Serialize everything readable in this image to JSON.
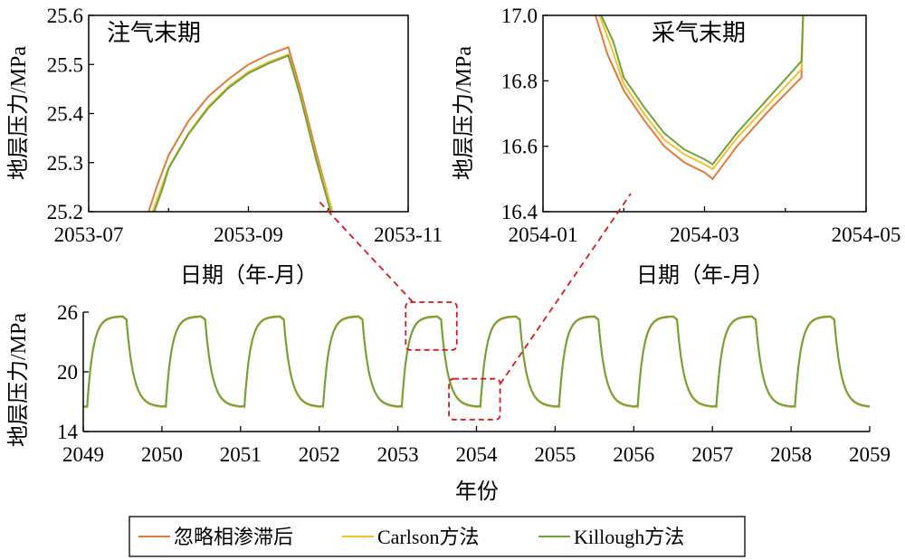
{
  "colors": {
    "ignore": "#E07B39",
    "carlson": "#F2C12E",
    "killough": "#6FA33A",
    "highlight": "#D7191C"
  },
  "legend": {
    "items": [
      {
        "key": "ignore",
        "label": "忽略相渗滞后"
      },
      {
        "key": "carlson",
        "label": "Carlson方法"
      },
      {
        "key": "killough",
        "label": "Killough方法"
      }
    ]
  },
  "chart_data": [
    {
      "id": "injection-end",
      "type": "line",
      "title": "注气末期",
      "xlabel": "日期（年-月）",
      "ylabel": "地层压力/MPa",
      "xlim": [
        "2053-07",
        "2053-11"
      ],
      "xticks": [
        "2053-07",
        "2053-09",
        "2053-11"
      ],
      "ylim": [
        25.2,
        25.6
      ],
      "yticks": [
        "25.2",
        "25.3",
        "25.4",
        "25.5",
        "25.6"
      ],
      "series": [
        {
          "key": "ignore",
          "name": "忽略相渗滞后",
          "points": [
            [
              0.75,
              25.2
            ],
            [
              0.85,
              25.25
            ],
            [
              1.0,
              25.315
            ],
            [
              1.25,
              25.385
            ],
            [
              1.5,
              25.435
            ],
            [
              1.75,
              25.47
            ],
            [
              2.0,
              25.5
            ],
            [
              2.25,
              25.52
            ],
            [
              2.5,
              25.535
            ],
            [
              2.65,
              25.45
            ],
            [
              2.85,
              25.32
            ],
            [
              3.05,
              25.2
            ]
          ]
        },
        {
          "key": "carlson",
          "name": "Carlson方法",
          "points": [
            [
              0.8,
              25.2
            ],
            [
              0.9,
              25.245
            ],
            [
              1.0,
              25.29
            ],
            [
              1.25,
              25.36
            ],
            [
              1.5,
              25.415
            ],
            [
              1.75,
              25.455
            ],
            [
              2.0,
              25.485
            ],
            [
              2.25,
              25.505
            ],
            [
              2.5,
              25.52
            ],
            [
              2.65,
              25.44
            ],
            [
              2.85,
              25.31
            ],
            [
              3.05,
              25.2
            ]
          ]
        },
        {
          "key": "killough",
          "name": "Killough方法",
          "points": [
            [
              0.82,
              25.2
            ],
            [
              0.92,
              25.245
            ],
            [
              1.0,
              25.288
            ],
            [
              1.25,
              25.358
            ],
            [
              1.5,
              25.412
            ],
            [
              1.75,
              25.452
            ],
            [
              2.0,
              25.482
            ],
            [
              2.25,
              25.502
            ],
            [
              2.5,
              25.518
            ],
            [
              2.65,
              25.435
            ],
            [
              2.85,
              25.305
            ],
            [
              3.03,
              25.2
            ]
          ]
        }
      ]
    },
    {
      "id": "production-end",
      "type": "line",
      "title": "采气末期",
      "xlabel": "日期（年-月）",
      "ylabel": "地层压力/MPa",
      "xlim": [
        "2054-01",
        "2054-05"
      ],
      "xticks": [
        "2054-01",
        "2054-03",
        "2054-05"
      ],
      "ylim": [
        16.4,
        17.0
      ],
      "yticks": [
        "16.4",
        "16.6",
        "16.8",
        "17.0"
      ],
      "series": [
        {
          "key": "ignore",
          "name": "忽略相渗滞后",
          "points": [
            [
              0.65,
              17.0
            ],
            [
              0.8,
              16.88
            ],
            [
              1.0,
              16.77
            ],
            [
              1.25,
              16.68
            ],
            [
              1.5,
              16.6
            ],
            [
              1.75,
              16.55
            ],
            [
              2.0,
              16.52
            ],
            [
              2.1,
              16.5
            ],
            [
              2.4,
              16.6
            ],
            [
              2.8,
              16.71
            ],
            [
              3.2,
              16.81
            ],
            [
              3.22,
              17.0
            ]
          ]
        },
        {
          "key": "carlson",
          "name": "Carlson方法",
          "points": [
            [
              0.7,
              17.0
            ],
            [
              0.85,
              16.9
            ],
            [
              1.0,
              16.79
            ],
            [
              1.25,
              16.7
            ],
            [
              1.5,
              16.62
            ],
            [
              1.75,
              16.575
            ],
            [
              2.0,
              16.545
            ],
            [
              2.1,
              16.53
            ],
            [
              2.4,
              16.625
            ],
            [
              2.8,
              16.73
            ],
            [
              3.2,
              16.835
            ],
            [
              3.22,
              17.0
            ]
          ]
        },
        {
          "key": "killough",
          "name": "Killough方法",
          "points": [
            [
              0.72,
              17.0
            ],
            [
              0.87,
              16.92
            ],
            [
              1.0,
              16.81
            ],
            [
              1.25,
              16.72
            ],
            [
              1.5,
              16.64
            ],
            [
              1.75,
              16.59
            ],
            [
              2.0,
              16.56
            ],
            [
              2.1,
              16.545
            ],
            [
              2.4,
              16.64
            ],
            [
              2.8,
              16.75
            ],
            [
              3.2,
              16.86
            ],
            [
              3.22,
              17.0
            ]
          ]
        }
      ]
    },
    {
      "id": "full-period",
      "type": "line",
      "title": "",
      "xlabel": "年份",
      "ylabel": "地层压力/MPa",
      "xlim": [
        2049,
        2059
      ],
      "xticks": [
        "2049",
        "2050",
        "2051",
        "2052",
        "2053",
        "2054",
        "2055",
        "2056",
        "2057",
        "2058",
        "2059"
      ],
      "ylim": [
        14,
        26
      ],
      "yticks": [
        "14",
        "20",
        "26"
      ],
      "cycle": {
        "low": 16.5,
        "high": 25.55,
        "start": 2049.0
      },
      "highlight_boxes": [
        {
          "x": [
            2053.1,
            2053.75
          ],
          "y": [
            22.2,
            27.0
          ]
        },
        {
          "x": [
            2053.65,
            2054.3
          ],
          "y": [
            15.2,
            19.3
          ]
        }
      ]
    }
  ]
}
